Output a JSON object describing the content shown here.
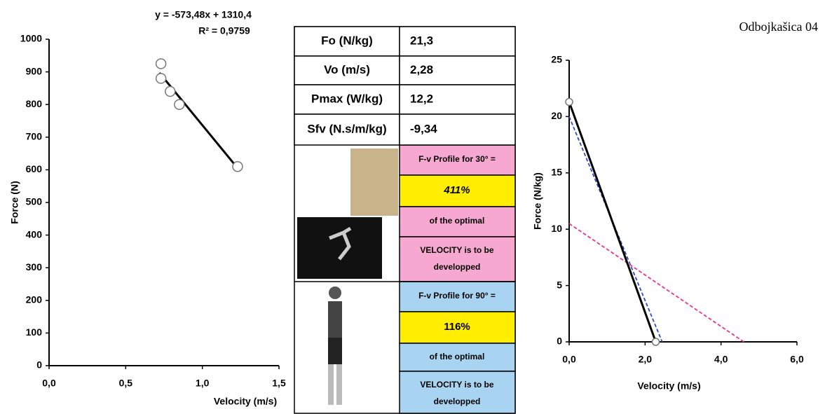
{
  "chart_data": [
    {
      "type": "scatter",
      "x_label": "Velocity (m/s)",
      "y_label": "Force (N)",
      "annotations": [
        "y = -573,48x + 1310,4",
        "R² = 0,9759"
      ],
      "xlim": [
        0,
        1.5
      ],
      "xticks": [
        {
          "value": 0,
          "label": "0,0"
        },
        {
          "value": 0.5,
          "label": "0,5"
        },
        {
          "value": 1,
          "label": "1,0"
        },
        {
          "value": 1.5,
          "label": "1,5"
        }
      ],
      "ylim": [
        0,
        1000
      ],
      "yticks": [
        0,
        100,
        200,
        300,
        400,
        500,
        600,
        700,
        800,
        900,
        1000
      ],
      "series": [
        {
          "color": "#000000",
          "mode": "line",
          "x": [
            0.72,
            1.22
          ],
          "values": [
            897,
            611
          ]
        },
        {
          "color": "#ffffff",
          "mode": "markers",
          "x": [
            0.73,
            0.73,
            0.79,
            0.85,
            1.23
          ],
          "values": [
            925,
            880,
            840,
            800,
            610
          ]
        }
      ]
    },
    {
      "type": "line",
      "title": "Odbojkašica 04",
      "x_label": "Velocity (m/s)",
      "y_label": "Force (N/kg)",
      "xlim": [
        0,
        6
      ],
      "xticks": [
        {
          "value": 0,
          "label": "0,0"
        },
        {
          "value": 2,
          "label": "2,0"
        },
        {
          "value": 4,
          "label": "4,0"
        },
        {
          "value": 6,
          "label": "6,0"
        }
      ],
      "ylim": [
        0,
        25
      ],
      "yticks": [
        0,
        5,
        10,
        15,
        20,
        25
      ],
      "series": [
        {
          "color": "#3344cc",
          "dashed": true,
          "x": [
            0,
            2.45
          ],
          "values": [
            20,
            0
          ]
        },
        {
          "color": "#ee3388",
          "dashed": true,
          "x": [
            0,
            4.6
          ],
          "values": [
            10.5,
            0
          ]
        },
        {
          "color": "#000000",
          "markers": true,
          "x": [
            0,
            2.28
          ],
          "values": [
            21.3,
            0
          ]
        }
      ]
    }
  ],
  "table": {
    "rows": [
      [
        "Fo (N/kg)",
        "21,3"
      ],
      [
        "Vo (m/s)",
        "2,28"
      ],
      [
        "Pmax (W/kg)",
        "12,2"
      ],
      [
        "Sfv (N.s/m/kg)",
        "-9,34"
      ]
    ],
    "profiles": [
      [
        "F-v Profile for 30° =",
        "411%",
        "of the optimal",
        "VELOCITY is to be",
        "developped"
      ],
      [
        "F-v Profile for 90° =",
        "116%",
        "of the optimal",
        "VELOCITY is to be",
        "developped"
      ]
    ]
  }
}
